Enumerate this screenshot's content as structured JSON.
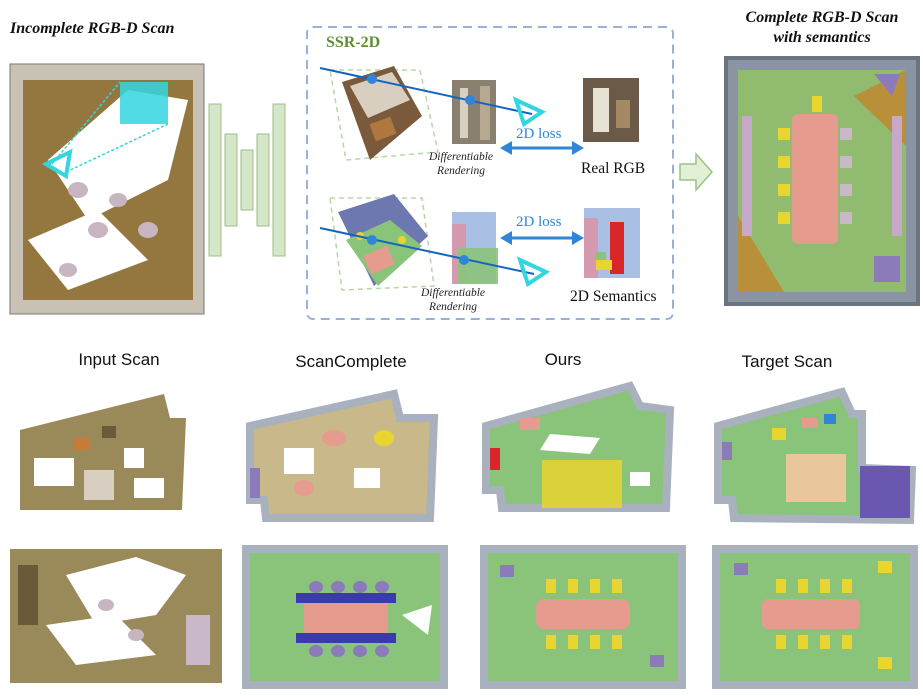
{
  "top": {
    "left_title": "Incomplete RGB-D Scan",
    "ssr_title": "SSR-2D",
    "right_title_line1": "Complete RGB-D Scan",
    "right_title_line2": "with semantics",
    "diff_render_1_line1": "Differentiable",
    "diff_render_1_line2": "Rendering",
    "diff_render_2_line1": "Differentiable",
    "diff_render_2_line2": "Rendering",
    "loss_1": "2D loss",
    "loss_2": "2D loss",
    "real_rgb": "Real RGB",
    "semantics_2d": "2D Semantics"
  },
  "bottom": {
    "columns": [
      "Input Scan",
      "ScanComplete",
      "Ours",
      "Target Scan"
    ]
  },
  "colors": {
    "ssr_title": "#5f8f34",
    "dashed_box": "#9ab0d8",
    "network_bar_fill": "#d6e6c9",
    "network_bar_stroke": "#9ebf86",
    "arrow_blue": "#2f86d6",
    "ray_blue": "#1565c0",
    "camera_cyan": "#33d6e0",
    "floor_green": "#8ac47a",
    "table_salmon": "#e69b8f",
    "chair_yellow": "#e8d530",
    "wall_grey": "#a8b1bd",
    "furniture_purple": "#8c7bbb",
    "wood_brown": "#8a6a2a"
  }
}
